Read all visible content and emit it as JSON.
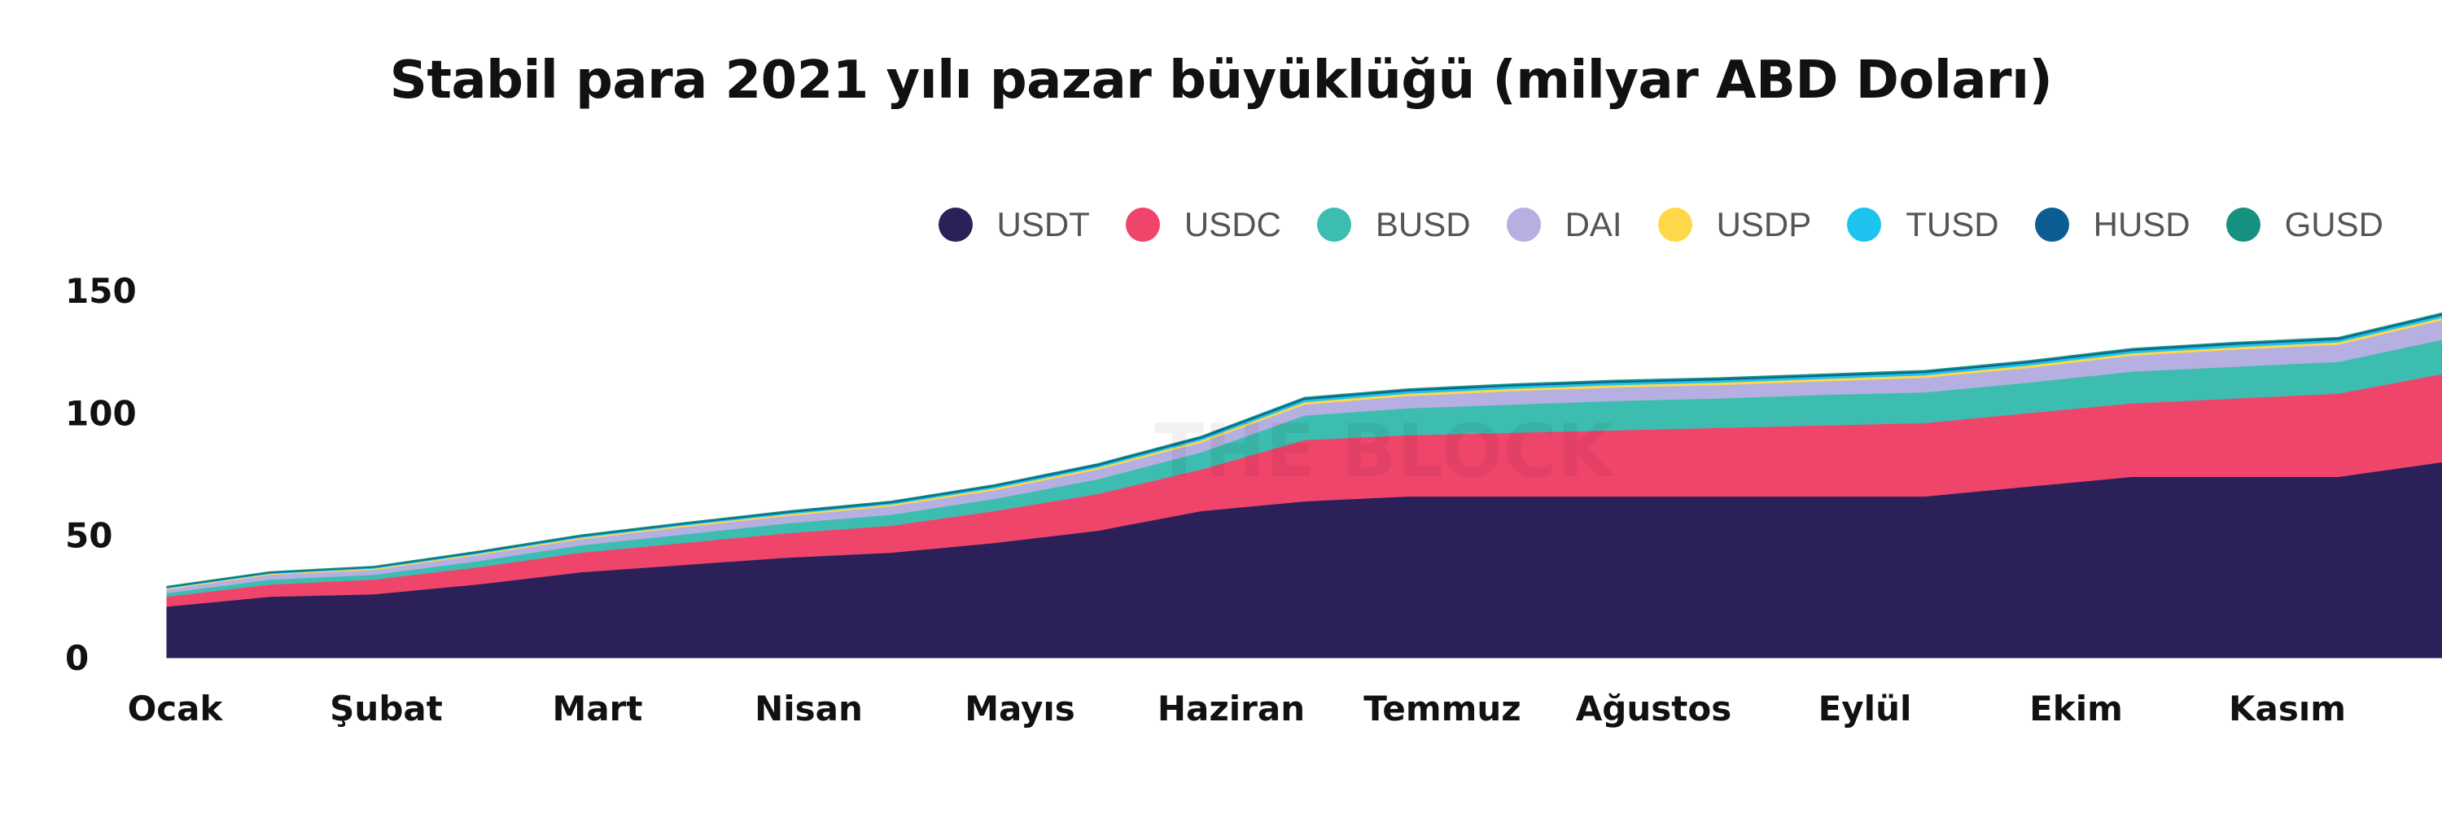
{
  "chart_data": {
    "type": "area",
    "stacked": true,
    "title": "Stabil para 2021 yılı pazar büyüklüğü (milyar ABD Doları)",
    "xlabel": "",
    "ylabel": "",
    "ylim": [
      0,
      150
    ],
    "yticks": [
      0,
      50,
      100,
      150
    ],
    "xticklabels": [
      "Ocak",
      "Şubat",
      "Mart",
      "Nisan",
      "Mayıs",
      "Haziran",
      "Temmuz",
      "Ağustos",
      "Eylül",
      "Ekim",
      "Kasım"
    ],
    "grid": false,
    "legend_position": "top-right",
    "x_months": [
      0,
      0.5,
      1,
      1.5,
      2,
      2.5,
      3,
      3.5,
      4,
      4.5,
      5,
      5.5,
      6,
      6.5,
      7,
      7.5,
      8,
      8.5,
      9,
      9.5,
      10,
      10.5,
      11
    ],
    "series": [
      {
        "name": "USDT",
        "color": "#2b2158",
        "values": [
          21,
          25,
          26,
          30,
          35,
          38,
          41,
          43,
          47,
          52,
          60,
          64,
          66,
          66,
          66,
          66,
          66,
          66,
          70,
          74,
          74,
          74,
          80
        ]
      },
      {
        "name": "USDC",
        "color": "#f0456b",
        "values": [
          4,
          5,
          6,
          7,
          8,
          9,
          10,
          11,
          13,
          15,
          17,
          25,
          25,
          26,
          27,
          28,
          29,
          30,
          30,
          30,
          32,
          34,
          36
        ]
      },
      {
        "name": "BUSD",
        "color": "#3dbdb0",
        "values": [
          1.5,
          2,
          2,
          2.5,
          3,
          3.5,
          4,
          4.5,
          5,
          6,
          7,
          10,
          11,
          11.5,
          12,
          12,
          12.5,
          12.5,
          12.5,
          13,
          13,
          13,
          14
        ]
      },
      {
        "name": "DAI",
        "color": "#b6afe1",
        "values": [
          1.5,
          2,
          2,
          2.5,
          2.5,
          3,
          3,
          3.5,
          3.5,
          4,
          4,
          4.5,
          5,
          5.5,
          5.5,
          5.5,
          5.5,
          6,
          6,
          6.5,
          7,
          7,
          8
        ]
      },
      {
        "name": "USDP",
        "color": "#ffd84a",
        "values": [
          0.4,
          0.4,
          0.5,
          0.5,
          0.6,
          0.6,
          0.7,
          0.7,
          0.8,
          0.8,
          0.9,
          1,
          1,
          1,
          1,
          1,
          1,
          1,
          1,
          1,
          1,
          1,
          1
        ]
      },
      {
        "name": "TUSD",
        "color": "#1dc3ee",
        "values": [
          0.3,
          0.3,
          0.4,
          0.4,
          0.5,
          0.5,
          0.6,
          0.6,
          0.7,
          0.7,
          0.8,
          1,
          1,
          1,
          1,
          1,
          1,
          1,
          1,
          1,
          1,
          1,
          1
        ]
      },
      {
        "name": "HUSD",
        "color": "#0b5d93",
        "values": [
          0.3,
          0.3,
          0.3,
          0.4,
          0.4,
          0.4,
          0.5,
          0.5,
          0.5,
          0.6,
          0.6,
          0.6,
          0.6,
          0.6,
          0.6,
          0.6,
          0.6,
          0.6,
          0.6,
          0.6,
          0.6,
          0.6,
          0.6
        ]
      },
      {
        "name": "GUSD",
        "color": "#16907f",
        "values": [
          0.2,
          0.2,
          0.2,
          0.2,
          0.2,
          0.2,
          0.2,
          0.2,
          0.2,
          0.2,
          0.2,
          0.3,
          0.3,
          0.3,
          0.3,
          0.3,
          0.3,
          0.3,
          0.3,
          0.3,
          0.3,
          0.3,
          0.3
        ]
      }
    ]
  },
  "watermark": "THE BLOCK"
}
